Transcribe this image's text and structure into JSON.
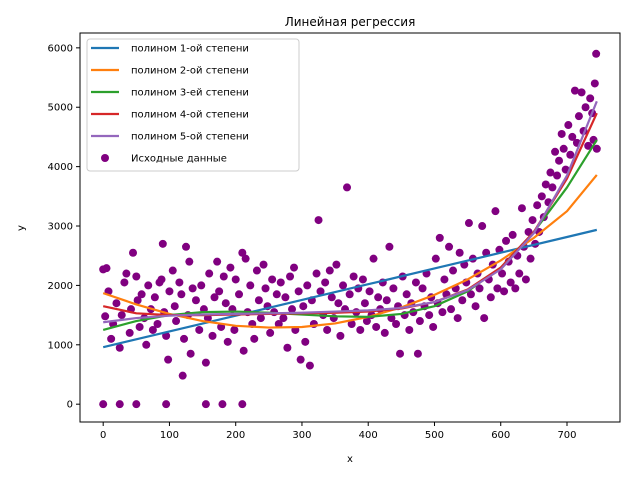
{
  "chart_data": {
    "type": "scatter",
    "title": "Линейная регрессия",
    "xlabel": "x",
    "ylabel": "y",
    "xlim": [
      -35,
      780
    ],
    "ylim": [
      -300,
      6250
    ],
    "xticks": [
      0,
      100,
      200,
      300,
      400,
      500,
      600,
      700
    ],
    "yticks": [
      0,
      1000,
      2000,
      3000,
      4000,
      5000,
      6000
    ],
    "grid": false,
    "legend_position": "top-left",
    "series": [
      {
        "name": "полином 1-ой степени",
        "kind": "line",
        "color": "#1f77b4",
        "points": [
          [
            0,
            960
          ],
          [
            100,
            1225
          ],
          [
            200,
            1490
          ],
          [
            300,
            1755
          ],
          [
            400,
            2020
          ],
          [
            500,
            2285
          ],
          [
            600,
            2550
          ],
          [
            700,
            2815
          ],
          [
            745,
            2935
          ]
        ]
      },
      {
        "name": "полином 2-ой степени",
        "kind": "line",
        "color": "#ff7f0e",
        "points": [
          [
            0,
            1870
          ],
          [
            50,
            1680
          ],
          [
            100,
            1520
          ],
          [
            150,
            1400
          ],
          [
            200,
            1320
          ],
          [
            250,
            1290
          ],
          [
            300,
            1300
          ],
          [
            350,
            1360
          ],
          [
            400,
            1470
          ],
          [
            450,
            1630
          ],
          [
            500,
            1840
          ],
          [
            550,
            2100
          ],
          [
            600,
            2420
          ],
          [
            650,
            2800
          ],
          [
            700,
            3250
          ],
          [
            745,
            3860
          ]
        ]
      },
      {
        "name": "полином 3-ей степени",
        "kind": "line",
        "color": "#2ca02c",
        "points": [
          [
            0,
            1250
          ],
          [
            50,
            1400
          ],
          [
            100,
            1500
          ],
          [
            150,
            1550
          ],
          [
            200,
            1560
          ],
          [
            250,
            1540
          ],
          [
            300,
            1510
          ],
          [
            350,
            1480
          ],
          [
            400,
            1470
          ],
          [
            450,
            1520
          ],
          [
            500,
            1650
          ],
          [
            550,
            1900
          ],
          [
            600,
            2300
          ],
          [
            650,
            2900
          ],
          [
            700,
            3650
          ],
          [
            745,
            4450
          ]
        ]
      },
      {
        "name": "полином 4-ой степени",
        "kind": "line",
        "color": "#d62728",
        "points": [
          [
            0,
            1650
          ],
          [
            50,
            1530
          ],
          [
            100,
            1500
          ],
          [
            150,
            1500
          ],
          [
            200,
            1510
          ],
          [
            250,
            1520
          ],
          [
            300,
            1530
          ],
          [
            350,
            1540
          ],
          [
            400,
            1560
          ],
          [
            450,
            1610
          ],
          [
            500,
            1720
          ],
          [
            550,
            1930
          ],
          [
            600,
            2300
          ],
          [
            650,
            2900
          ],
          [
            700,
            3800
          ],
          [
            745,
            4900
          ]
        ]
      },
      {
        "name": "полином 5-ой степени",
        "kind": "line",
        "color": "#9467bd",
        "points": [
          [
            0,
            1380
          ],
          [
            50,
            1450
          ],
          [
            100,
            1490
          ],
          [
            150,
            1510
          ],
          [
            200,
            1520
          ],
          [
            250,
            1530
          ],
          [
            300,
            1540
          ],
          [
            350,
            1560
          ],
          [
            400,
            1580
          ],
          [
            450,
            1620
          ],
          [
            500,
            1720
          ],
          [
            550,
            1920
          ],
          [
            600,
            2270
          ],
          [
            650,
            2880
          ],
          [
            700,
            3850
          ],
          [
            745,
            5100
          ]
        ]
      },
      {
        "name": "Исходные данные",
        "kind": "scatter",
        "color": "#800080",
        "points": [
          [
            0,
            0
          ],
          [
            25,
            0
          ],
          [
            50,
            0
          ],
          [
            95,
            0
          ],
          [
            155,
            0
          ],
          [
            180,
            0
          ],
          [
            210,
            0
          ],
          [
            0,
            2270
          ],
          [
            5,
            2290
          ],
          [
            3,
            1480
          ],
          [
            8,
            1900
          ],
          [
            12,
            1100
          ],
          [
            15,
            1350
          ],
          [
            20,
            1700
          ],
          [
            25,
            950
          ],
          [
            28,
            1500
          ],
          [
            32,
            2050
          ],
          [
            35,
            2200
          ],
          [
            40,
            1200
          ],
          [
            42,
            1600
          ],
          [
            45,
            2550
          ],
          [
            50,
            2150
          ],
          [
            52,
            1750
          ],
          [
            55,
            1300
          ],
          [
            58,
            1850
          ],
          [
            62,
            1450
          ],
          [
            65,
            1000
          ],
          [
            68,
            2000
          ],
          [
            72,
            1600
          ],
          [
            75,
            1250
          ],
          [
            78,
            1800
          ],
          [
            82,
            1350
          ],
          [
            85,
            2050
          ],
          [
            88,
            2100
          ],
          [
            90,
            2700
          ],
          [
            92,
            1550
          ],
          [
            95,
            1150
          ],
          [
            98,
            750
          ],
          [
            100,
            1900
          ],
          [
            105,
            2250
          ],
          [
            108,
            1650
          ],
          [
            110,
            1400
          ],
          [
            115,
            2050
          ],
          [
            118,
            1850
          ],
          [
            120,
            480
          ],
          [
            122,
            1100
          ],
          [
            125,
            2650
          ],
          [
            128,
            1500
          ],
          [
            130,
            2400
          ],
          [
            132,
            850
          ],
          [
            135,
            1950
          ],
          [
            140,
            1750
          ],
          [
            145,
            1250
          ],
          [
            148,
            2000
          ],
          [
            152,
            1600
          ],
          [
            155,
            700
          ],
          [
            158,
            1450
          ],
          [
            160,
            2200
          ],
          [
            165,
            1150
          ],
          [
            168,
            1800
          ],
          [
            172,
            2400
          ],
          [
            175,
            1900
          ],
          [
            178,
            1300
          ],
          [
            182,
            2150
          ],
          [
            185,
            1700
          ],
          [
            188,
            1050
          ],
          [
            192,
            2300
          ],
          [
            195,
            1600
          ],
          [
            198,
            1250
          ],
          [
            200,
            2100
          ],
          [
            205,
            1850
          ],
          [
            210,
            2550
          ],
          [
            212,
            900
          ],
          [
            215,
            2450
          ],
          [
            218,
            1550
          ],
          [
            222,
            2000
          ],
          [
            225,
            1350
          ],
          [
            228,
            1100
          ],
          [
            232,
            2250
          ],
          [
            235,
            1750
          ],
          [
            238,
            1450
          ],
          [
            242,
            2350
          ],
          [
            245,
            1950
          ],
          [
            248,
            1650
          ],
          [
            252,
            1200
          ],
          [
            255,
            2100
          ],
          [
            258,
            1550
          ],
          [
            262,
            1850
          ],
          [
            265,
            1350
          ],
          [
            268,
            2050
          ],
          [
            272,
            1450
          ],
          [
            275,
            1800
          ],
          [
            278,
            950
          ],
          [
            282,
            2150
          ],
          [
            285,
            1600
          ],
          [
            288,
            2300
          ],
          [
            290,
            1250
          ],
          [
            295,
            1900
          ],
          [
            298,
            750
          ],
          [
            302,
            1650
          ],
          [
            305,
            1050
          ],
          [
            308,
            2000
          ],
          [
            312,
            650
          ],
          [
            315,
            1750
          ],
          [
            318,
            1350
          ],
          [
            322,
            2200
          ],
          [
            325,
            3100
          ],
          [
            328,
            1900
          ],
          [
            332,
            1500
          ],
          [
            335,
            2050
          ],
          [
            338,
            1250
          ],
          [
            342,
            2250
          ],
          [
            345,
            1800
          ],
          [
            348,
            1450
          ],
          [
            352,
            2350
          ],
          [
            355,
            1700
          ],
          [
            358,
            1150
          ],
          [
            362,
            2000
          ],
          [
            365,
            1600
          ],
          [
            368,
            3650
          ],
          [
            372,
            1850
          ],
          [
            375,
            1350
          ],
          [
            378,
            2150
          ],
          [
            382,
            1550
          ],
          [
            385,
            1950
          ],
          [
            388,
            1250
          ],
          [
            392,
            2100
          ],
          [
            395,
            1700
          ],
          [
            398,
            1400
          ],
          [
            402,
            1900
          ],
          [
            405,
            1500
          ],
          [
            408,
            2450
          ],
          [
            412,
            1300
          ],
          [
            415,
            1800
          ],
          [
            418,
            1600
          ],
          [
            422,
            2050
          ],
          [
            425,
            1200
          ],
          [
            428,
            1750
          ],
          [
            432,
            2650
          ],
          [
            435,
            1450
          ],
          [
            438,
            1950
          ],
          [
            442,
            1350
          ],
          [
            445,
            1650
          ],
          [
            448,
            850
          ],
          [
            452,
            2150
          ],
          [
            455,
            1500
          ],
          [
            458,
            1850
          ],
          [
            462,
            1250
          ],
          [
            465,
            1700
          ],
          [
            468,
            1550
          ],
          [
            472,
            2050
          ],
          [
            475,
            850
          ],
          [
            478,
            1400
          ],
          [
            482,
            1950
          ],
          [
            485,
            1650
          ],
          [
            488,
            2200
          ],
          [
            492,
            1500
          ],
          [
            495,
            1800
          ],
          [
            498,
            1300
          ],
          [
            502,
            2450
          ],
          [
            505,
            1700
          ],
          [
            508,
            2800
          ],
          [
            512,
            1550
          ],
          [
            515,
            2100
          ],
          [
            518,
            1850
          ],
          [
            522,
            2650
          ],
          [
            525,
            1600
          ],
          [
            528,
            2250
          ],
          [
            532,
            1950
          ],
          [
            535,
            1450
          ],
          [
            538,
            2550
          ],
          [
            542,
            1750
          ],
          [
            545,
            2350
          ],
          [
            548,
            2050
          ],
          [
            552,
            3050
          ],
          [
            555,
            1850
          ],
          [
            558,
            2450
          ],
          [
            562,
            1650
          ],
          [
            565,
            2200
          ],
          [
            568,
            1950
          ],
          [
            572,
            3000
          ],
          [
            575,
            1450
          ],
          [
            578,
            2550
          ],
          [
            582,
            2100
          ],
          [
            585,
            1800
          ],
          [
            588,
            2350
          ],
          [
            592,
            3250
          ],
          [
            595,
            1950
          ],
          [
            598,
            2600
          ],
          [
            602,
            2200
          ],
          [
            605,
            1900
          ],
          [
            608,
            2750
          ],
          [
            612,
            2400
          ],
          [
            615,
            2050
          ],
          [
            618,
            2850
          ],
          [
            622,
            1950
          ],
          [
            625,
            2500
          ],
          [
            628,
            2200
          ],
          [
            632,
            3300
          ],
          [
            635,
            2650
          ],
          [
            638,
            2100
          ],
          [
            642,
            2900
          ],
          [
            645,
            2450
          ],
          [
            648,
            3100
          ],
          [
            652,
            2700
          ],
          [
            655,
            3350
          ],
          [
            658,
            2900
          ],
          [
            662,
            3500
          ],
          [
            665,
            3150
          ],
          [
            668,
            3700
          ],
          [
            672,
            3400
          ],
          [
            675,
            3900
          ],
          [
            678,
            3650
          ],
          [
            682,
            4250
          ],
          [
            685,
            3850
          ],
          [
            688,
            4100
          ],
          [
            692,
            4550
          ],
          [
            695,
            4300
          ],
          [
            698,
            3950
          ],
          [
            702,
            4700
          ],
          [
            705,
            4200
          ],
          [
            708,
            4500
          ],
          [
            712,
            5280
          ],
          [
            715,
            4400
          ],
          [
            718,
            4850
          ],
          [
            722,
            5250
          ],
          [
            725,
            4600
          ],
          [
            728,
            5000
          ],
          [
            732,
            4350
          ],
          [
            735,
            5150
          ],
          [
            738,
            4900
          ],
          [
            740,
            4450
          ],
          [
            742,
            5400
          ],
          [
            744,
            5900
          ],
          [
            745,
            4300
          ]
        ]
      }
    ]
  }
}
